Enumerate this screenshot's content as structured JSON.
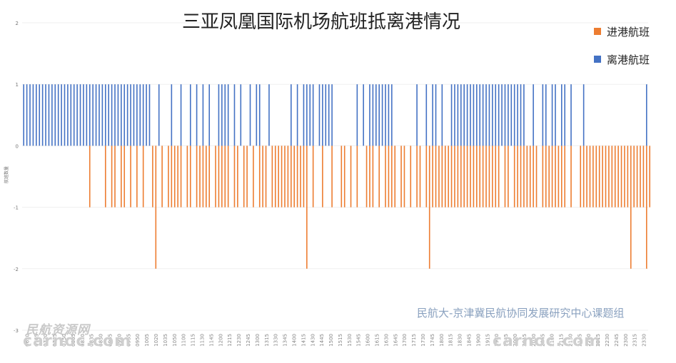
{
  "chart_data": {
    "type": "bar",
    "title": "三亚凤凰国际机场航班抵离港情况",
    "ylabel": "航班数量",
    "xlabel": "",
    "ylim": [
      -3,
      2
    ],
    "y_ticks": [
      -3,
      -2,
      -1,
      0,
      1,
      2
    ],
    "grid": true,
    "legend_position": "top-right",
    "x_tick_labels": [
      "0630",
      "0705",
      "0720",
      "0735",
      "0750",
      "0805",
      "0820",
      "0835",
      "0850",
      "0905",
      "0920",
      "0935",
      "0950",
      "1005",
      "1020",
      "1035",
      "1050",
      "1100",
      "1115",
      "1130",
      "1145",
      "1200",
      "1215",
      "1230",
      "1245",
      "1300",
      "1315",
      "1330",
      "1345",
      "1400",
      "1415",
      "1430",
      "1445",
      "1500",
      "1515",
      "1530",
      "1545",
      "1600",
      "1615",
      "1630",
      "1645",
      "1700",
      "1715",
      "1730",
      "1745",
      "1800",
      "1815",
      "1830",
      "1845",
      "1900",
      "1915",
      "1930",
      "1945",
      "2000",
      "2015",
      "2030",
      "2045",
      "2100",
      "2115",
      "2130",
      "2145",
      "2200",
      "2215",
      "2230",
      "2245",
      "2300",
      "2315",
      "2330"
    ],
    "series": [
      {
        "name": "进港航班",
        "color": "#ED7D31",
        "values": [
          0,
          0,
          0,
          0,
          0,
          0,
          0,
          0,
          0,
          0,
          0,
          0,
          0,
          0,
          0,
          0,
          0,
          0,
          0,
          0,
          0,
          -1,
          0,
          0,
          0,
          0,
          -1,
          0,
          -1,
          -1,
          0,
          -1,
          -1,
          0,
          -1,
          0,
          -1,
          0,
          -1,
          0,
          0,
          -1,
          -2,
          0,
          -1,
          0,
          -1,
          -1,
          -1,
          -1,
          -1,
          0,
          -1,
          -1,
          0,
          -1,
          -1,
          -1,
          -1,
          -1,
          0,
          -1,
          -1,
          -1,
          -1,
          -1,
          0,
          -1,
          -1,
          0,
          -1,
          -1,
          0,
          -1,
          0,
          -1,
          -1,
          -1,
          0,
          -1,
          -1,
          -1,
          -1,
          -1,
          -1,
          -1,
          -1,
          -1,
          -1,
          -1,
          -2,
          0,
          -1,
          0,
          0,
          -1,
          0,
          0,
          -1,
          0,
          0,
          -1,
          -1,
          0,
          -1,
          0,
          -1,
          0,
          0,
          -1,
          -1,
          -1,
          0,
          -1,
          0,
          -1,
          -1,
          -1,
          -1,
          0,
          -1,
          -1,
          0,
          -1,
          0,
          -1,
          -1,
          0,
          -1,
          -2,
          -1,
          -1,
          -1,
          -1,
          -1,
          -1,
          -1,
          -1,
          -1,
          -1,
          -1,
          -1,
          -1,
          -1,
          -1,
          -1,
          -1,
          -1,
          -1,
          -1,
          -1,
          -1,
          0,
          -1,
          -1,
          0,
          -1,
          -1,
          -1,
          -1,
          -1,
          -1,
          -1,
          -1,
          0,
          -1,
          -1,
          -1,
          -1,
          -1,
          -1,
          -1,
          -1,
          0,
          -1,
          0,
          0,
          -1,
          -1,
          -1,
          -1,
          -1,
          -1,
          -1,
          -1,
          -1,
          -1,
          -1,
          -1,
          -1,
          -1,
          -1,
          -1,
          -2,
          -1,
          -1,
          -1,
          -1,
          -2,
          -1,
          0
        ]
      },
      {
        "name": "离港航班",
        "color": "#4472C4",
        "values": [
          1,
          1,
          1,
          1,
          1,
          1,
          1,
          1,
          1,
          1,
          1,
          1,
          1,
          1,
          1,
          1,
          1,
          1,
          1,
          1,
          1,
          1,
          1,
          1,
          1,
          1,
          1,
          1,
          1,
          1,
          1,
          1,
          1,
          1,
          1,
          1,
          1,
          1,
          1,
          1,
          1,
          0,
          0,
          1,
          0,
          0,
          0,
          1,
          0,
          0,
          1,
          0,
          0,
          1,
          0,
          1,
          0,
          1,
          0,
          1,
          0,
          0,
          1,
          1,
          1,
          1,
          0,
          1,
          0,
          1,
          0,
          0,
          1,
          0,
          1,
          1,
          0,
          0,
          1,
          0,
          0,
          0,
          0,
          0,
          0,
          1,
          0,
          1,
          0,
          1,
          1,
          1,
          1,
          0,
          1,
          1,
          1,
          1,
          1,
          0,
          0,
          0,
          0,
          0,
          0,
          0,
          1,
          0,
          1,
          0,
          1,
          1,
          1,
          1,
          1,
          1,
          1,
          1,
          0,
          0,
          0,
          0,
          0,
          0,
          0,
          1,
          0,
          0,
          1,
          0,
          1,
          1,
          0,
          1,
          0,
          0,
          1,
          1,
          1,
          1,
          1,
          1,
          1,
          1,
          1,
          1,
          1,
          1,
          1,
          1,
          1,
          1,
          1,
          1,
          1,
          1,
          1,
          1,
          1,
          1,
          0,
          0,
          1,
          0,
          0,
          1,
          1,
          0,
          1,
          1,
          0,
          1,
          1,
          0,
          1,
          0,
          0,
          0,
          1,
          0,
          0,
          0,
          0,
          0,
          0,
          0,
          0,
          0,
          0,
          0,
          0,
          0,
          0,
          0,
          0,
          0,
          0,
          0,
          1
        ]
      }
    ]
  },
  "credit": "民航大-京津冀民航协同发展研究中心课题组",
  "watermark": {
    "left_cn": "民航资源网",
    "left_en": "carnoc.com",
    "right_en": "carnoc.com"
  }
}
